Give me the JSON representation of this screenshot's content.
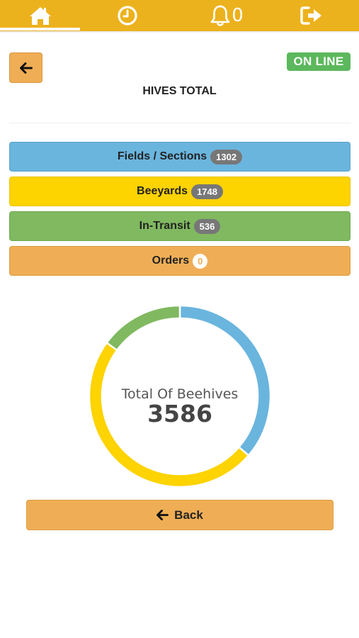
{
  "nav": {
    "items": [
      {
        "name": "home",
        "icon": "home-icon",
        "active": true
      },
      {
        "name": "history",
        "icon": "clock-icon"
      },
      {
        "name": "notifications",
        "icon": "bell-icon",
        "count": "0"
      },
      {
        "name": "logout",
        "icon": "sign-out-icon"
      }
    ]
  },
  "header": {
    "status": "ON LINE",
    "title": "HIVES TOTAL"
  },
  "categories": [
    {
      "label": "Fields / Sections",
      "count": "1302",
      "color": "#6AB5DE"
    },
    {
      "label": "Beeyards",
      "count": "1748",
      "color": "#FDD300"
    },
    {
      "label": "In-Transit",
      "count": "536",
      "color": "#80B960"
    },
    {
      "label": "Orders",
      "count": "0",
      "color": "#EFAE55"
    }
  ],
  "chart_data": {
    "type": "pie",
    "style": "doughnut",
    "center_label": "Total Of Beehives",
    "center_value": "3586",
    "categories": [
      "Fields / Sections",
      "Beeyards",
      "In-Transit",
      "Orders"
    ],
    "values": [
      1302,
      1748,
      536,
      0
    ],
    "colors": [
      "#6AB5DE",
      "#FDD300",
      "#80B960",
      "#EFAE55"
    ],
    "start_angle_deg": 0,
    "direction": "clockwise"
  },
  "footer": {
    "back_label": "Back"
  },
  "colors": {
    "nav_bar": "#ECB21D",
    "online": "#5CB85C",
    "button": "#EFAE55"
  }
}
